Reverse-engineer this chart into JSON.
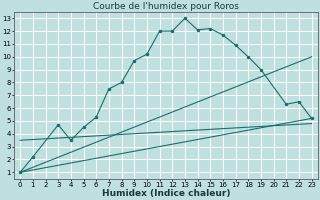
{
  "title": "Courbe de l'humidex pour Roros",
  "xlabel": "Humidex (Indice chaleur)",
  "bg_color": "#c0e0e0",
  "grid_color": "#ffffff",
  "line_color": "#1a6e6e",
  "xlim": [
    -0.5,
    23.5
  ],
  "ylim": [
    0.5,
    13.5
  ],
  "xticks": [
    0,
    1,
    2,
    3,
    4,
    5,
    6,
    7,
    8,
    9,
    10,
    11,
    12,
    13,
    14,
    15,
    16,
    17,
    18,
    19,
    20,
    21,
    22,
    23
  ],
  "yticks": [
    1,
    2,
    3,
    4,
    5,
    6,
    7,
    8,
    9,
    10,
    11,
    12,
    13
  ],
  "curve_x": [
    0,
    1,
    3,
    4,
    5,
    6,
    7,
    8,
    9,
    10,
    11,
    12,
    13,
    14,
    15,
    16,
    17,
    18,
    19,
    21,
    22,
    23
  ],
  "curve_y": [
    1,
    2.2,
    4.7,
    3.5,
    4.5,
    5.3,
    7.5,
    8.0,
    9.7,
    10.2,
    12.0,
    12.0,
    13.0,
    12.1,
    12.2,
    11.7,
    10.9,
    10.0,
    9.0,
    6.3,
    6.5,
    5.2
  ],
  "line1_x": [
    0,
    23
  ],
  "line1_y": [
    1.0,
    10.0
  ],
  "line2_x": [
    0,
    23
  ],
  "line2_y": [
    1.0,
    5.2
  ],
  "line3_x": [
    0,
    23
  ],
  "line3_y": [
    3.5,
    4.8
  ],
  "title_fontsize": 6.5,
  "xlabel_fontsize": 6.5,
  "tick_fontsize": 5.0
}
